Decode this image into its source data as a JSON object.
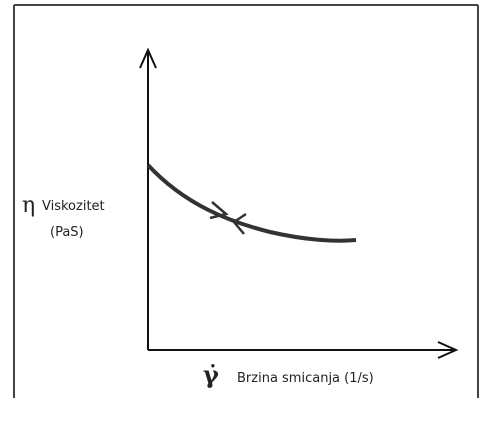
{
  "y_axis": {
    "symbol": "η",
    "label": "Viskozitet",
    "unit": "(PaS)"
  },
  "x_axis": {
    "symbol": "γ̇",
    "label": "Brzina smicanja (1/s)"
  }
}
